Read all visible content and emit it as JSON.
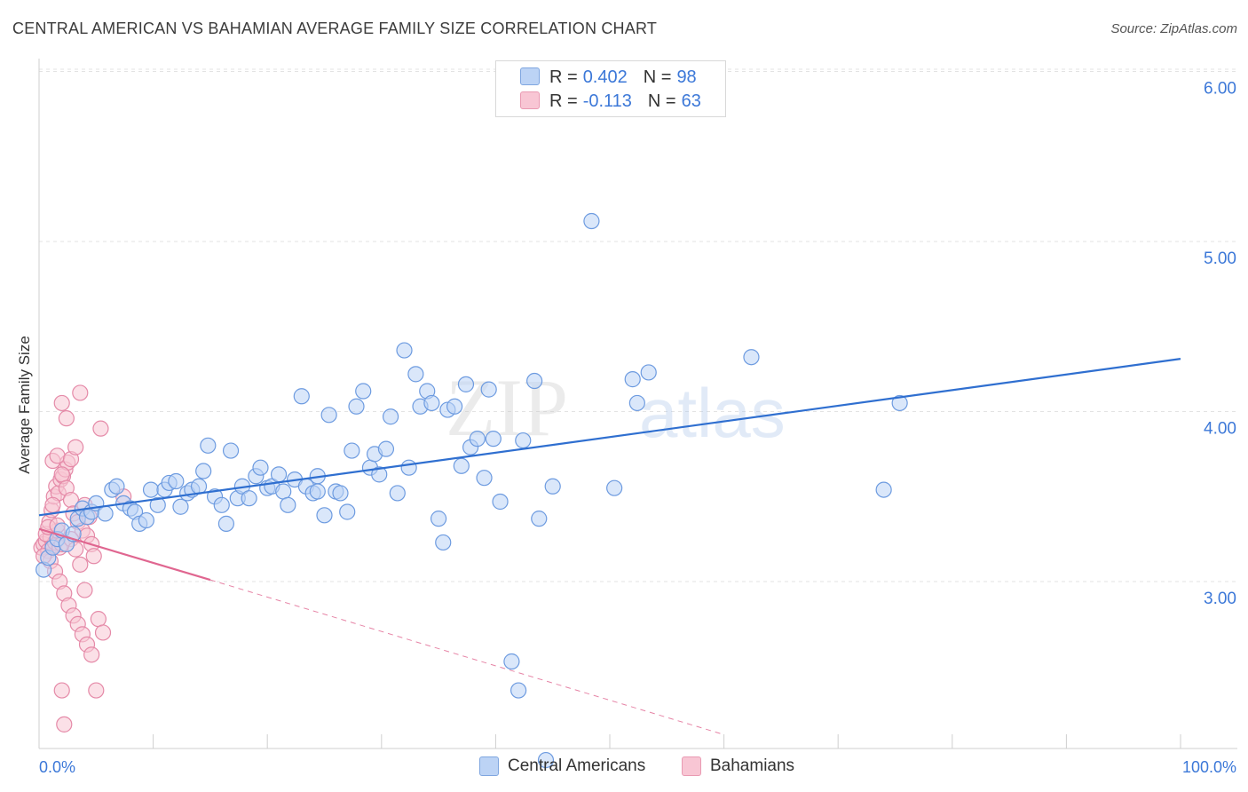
{
  "title": "CENTRAL AMERICAN VS BAHAMIAN AVERAGE FAMILY SIZE CORRELATION CHART",
  "source": "Source: ZipAtlas.com",
  "watermark": {
    "part1": "ZIP",
    "part2": "atlas"
  },
  "legend": {
    "rows": [
      {
        "r_label": "R =",
        "r_value": "0.402",
        "n_label": "N =",
        "n_value": "98",
        "color": "#7fa6e0"
      },
      {
        "r_label": "R =",
        "r_value": "-0.113",
        "n_label": "N =",
        "n_value": "63",
        "color": "#e99ab2"
      }
    ]
  },
  "bottom_legend": {
    "blue_label": "Central Americans",
    "pink_label": "Bahamians"
  },
  "colors": {
    "blue_fill": "#bcd3f5",
    "blue_stroke": "#6d9be0",
    "blue_line": "#2f6fd0",
    "pink_fill": "#f8c6d4",
    "pink_stroke": "#e58aa8",
    "pink_line": "#e06690",
    "tick_text": "#3c78d8",
    "grid": "#e3e3e3"
  },
  "chart_data": {
    "type": "scatter",
    "title": "CENTRAL AMERICAN VS BAHAMIAN AVERAGE FAMILY SIZE CORRELATION CHART",
    "xlabel": "",
    "ylabel": "Average Family Size",
    "xlim": [
      0,
      100
    ],
    "ylim": [
      2.0,
      6.1
    ],
    "x_tick_labels": {
      "left": "0.0%",
      "right": "100.0%"
    },
    "y_ticks": [
      {
        "value": 3.0,
        "label": "3.00"
      },
      {
        "value": 4.0,
        "label": "4.00"
      },
      {
        "value": 5.0,
        "label": "5.00"
      },
      {
        "value": 6.0,
        "label": "6.00"
      }
    ],
    "series": [
      {
        "name": "Central Americans",
        "r": 0.402,
        "n": 98,
        "trendline": {
          "x": [
            0,
            100
          ],
          "y": [
            3.39,
            4.31
          ]
        },
        "points": [
          [
            0.4,
            3.07
          ],
          [
            0.8,
            3.14
          ],
          [
            1.2,
            3.2
          ],
          [
            1.6,
            3.25
          ],
          [
            2.0,
            3.3
          ],
          [
            2.4,
            3.22
          ],
          [
            3.0,
            3.28
          ],
          [
            3.4,
            3.37
          ],
          [
            3.8,
            3.43
          ],
          [
            4.2,
            3.38
          ],
          [
            4.6,
            3.41
          ],
          [
            5.0,
            3.46
          ],
          [
            5.8,
            3.4
          ],
          [
            6.4,
            3.54
          ],
          [
            6.8,
            3.56
          ],
          [
            7.4,
            3.46
          ],
          [
            8.0,
            3.43
          ],
          [
            8.4,
            3.41
          ],
          [
            8.8,
            3.34
          ],
          [
            9.4,
            3.36
          ],
          [
            9.8,
            3.54
          ],
          [
            10.4,
            3.45
          ],
          [
            11.0,
            3.54
          ],
          [
            11.4,
            3.58
          ],
          [
            12.0,
            3.59
          ],
          [
            12.4,
            3.44
          ],
          [
            13.0,
            3.52
          ],
          [
            13.4,
            3.54
          ],
          [
            14.0,
            3.56
          ],
          [
            14.4,
            3.65
          ],
          [
            14.8,
            3.8
          ],
          [
            15.4,
            3.5
          ],
          [
            16.0,
            3.45
          ],
          [
            16.4,
            3.34
          ],
          [
            16.8,
            3.77
          ],
          [
            17.4,
            3.49
          ],
          [
            17.8,
            3.56
          ],
          [
            18.4,
            3.49
          ],
          [
            19.0,
            3.62
          ],
          [
            19.4,
            3.67
          ],
          [
            20.0,
            3.55
          ],
          [
            20.4,
            3.56
          ],
          [
            21.0,
            3.63
          ],
          [
            21.4,
            3.53
          ],
          [
            21.8,
            3.45
          ],
          [
            22.4,
            3.6
          ],
          [
            23.0,
            4.09
          ],
          [
            23.4,
            3.56
          ],
          [
            24.0,
            3.52
          ],
          [
            24.4,
            3.62
          ],
          [
            25.0,
            3.39
          ],
          [
            25.4,
            3.98
          ],
          [
            26.0,
            3.53
          ],
          [
            26.4,
            3.52
          ],
          [
            27.0,
            3.41
          ],
          [
            27.4,
            3.77
          ],
          [
            27.8,
            4.03
          ],
          [
            28.4,
            4.12
          ],
          [
            29.0,
            3.67
          ],
          [
            29.4,
            3.75
          ],
          [
            29.8,
            3.63
          ],
          [
            30.4,
            3.78
          ],
          [
            30.8,
            3.97
          ],
          [
            31.4,
            3.52
          ],
          [
            32.0,
            4.36
          ],
          [
            32.4,
            3.67
          ],
          [
            33.0,
            4.22
          ],
          [
            33.4,
            4.03
          ],
          [
            34.0,
            4.12
          ],
          [
            34.4,
            4.05
          ],
          [
            35.0,
            3.37
          ],
          [
            35.4,
            3.23
          ],
          [
            35.8,
            4.01
          ],
          [
            36.4,
            4.03
          ],
          [
            37.0,
            3.68
          ],
          [
            37.4,
            4.16
          ],
          [
            37.8,
            3.79
          ],
          [
            38.4,
            3.84
          ],
          [
            39.0,
            3.61
          ],
          [
            39.4,
            4.13
          ],
          [
            39.8,
            3.84
          ],
          [
            40.4,
            3.47
          ],
          [
            41.4,
            2.53
          ],
          [
            42.0,
            2.36
          ],
          [
            42.4,
            3.83
          ],
          [
            43.4,
            4.18
          ],
          [
            43.8,
            3.37
          ],
          [
            44.4,
            1.95
          ],
          [
            45.0,
            3.56
          ],
          [
            48.4,
            5.12
          ],
          [
            50.4,
            3.55
          ],
          [
            52.4,
            4.05
          ],
          [
            52.0,
            4.19
          ],
          [
            53.4,
            4.23
          ],
          [
            62.4,
            4.32
          ],
          [
            75.4,
            4.05
          ],
          [
            74.0,
            3.54
          ],
          [
            24.4,
            3.53
          ]
        ]
      },
      {
        "name": "Bahamians",
        "r": -0.113,
        "n": 63,
        "trendline": {
          "x": [
            0,
            15
          ],
          "y": [
            3.31,
            3.01
          ]
        },
        "trendline_extension": {
          "x": [
            15,
            60
          ],
          "y": [
            3.01,
            2.1
          ]
        },
        "points": [
          [
            0.2,
            3.2
          ],
          [
            0.4,
            3.22
          ],
          [
            0.6,
            3.24
          ],
          [
            0.8,
            3.18
          ],
          [
            1.0,
            3.26
          ],
          [
            1.2,
            3.21
          ],
          [
            1.4,
            3.23
          ],
          [
            1.6,
            3.3
          ],
          [
            1.8,
            3.2
          ],
          [
            2.0,
            3.22
          ],
          [
            0.6,
            3.28
          ],
          [
            0.9,
            3.35
          ],
          [
            1.1,
            3.42
          ],
          [
            1.3,
            3.5
          ],
          [
            1.5,
            3.56
          ],
          [
            1.7,
            3.52
          ],
          [
            1.9,
            3.6
          ],
          [
            2.1,
            3.62
          ],
          [
            2.3,
            3.66
          ],
          [
            2.5,
            3.7
          ],
          [
            1.2,
            3.71
          ],
          [
            1.6,
            3.74
          ],
          [
            2.0,
            3.63
          ],
          [
            2.4,
            3.55
          ],
          [
            2.8,
            3.48
          ],
          [
            3.0,
            3.4
          ],
          [
            3.4,
            3.35
          ],
          [
            3.8,
            3.3
          ],
          [
            4.2,
            3.27
          ],
          [
            4.6,
            3.22
          ],
          [
            1.0,
            3.12
          ],
          [
            1.4,
            3.06
          ],
          [
            1.8,
            3.0
          ],
          [
            2.2,
            2.93
          ],
          [
            2.6,
            2.86
          ],
          [
            3.0,
            2.8
          ],
          [
            3.4,
            2.75
          ],
          [
            3.8,
            2.69
          ],
          [
            4.2,
            2.63
          ],
          [
            4.6,
            2.57
          ],
          [
            2.0,
            4.05
          ],
          [
            2.4,
            3.96
          ],
          [
            2.8,
            3.72
          ],
          [
            3.2,
            3.79
          ],
          [
            3.6,
            4.11
          ],
          [
            4.0,
            3.45
          ],
          [
            4.4,
            3.38
          ],
          [
            4.8,
            3.15
          ],
          [
            5.2,
            2.78
          ],
          [
            5.6,
            2.7
          ],
          [
            2.0,
            2.36
          ],
          [
            2.2,
            2.16
          ],
          [
            5.0,
            2.36
          ],
          [
            5.4,
            3.9
          ],
          [
            7.4,
            3.5
          ],
          [
            0.4,
            3.15
          ],
          [
            0.8,
            3.32
          ],
          [
            1.2,
            3.45
          ],
          [
            1.6,
            3.33
          ],
          [
            2.8,
            3.25
          ],
          [
            3.2,
            3.19
          ],
          [
            3.6,
            3.1
          ],
          [
            4.0,
            2.95
          ]
        ]
      }
    ]
  }
}
